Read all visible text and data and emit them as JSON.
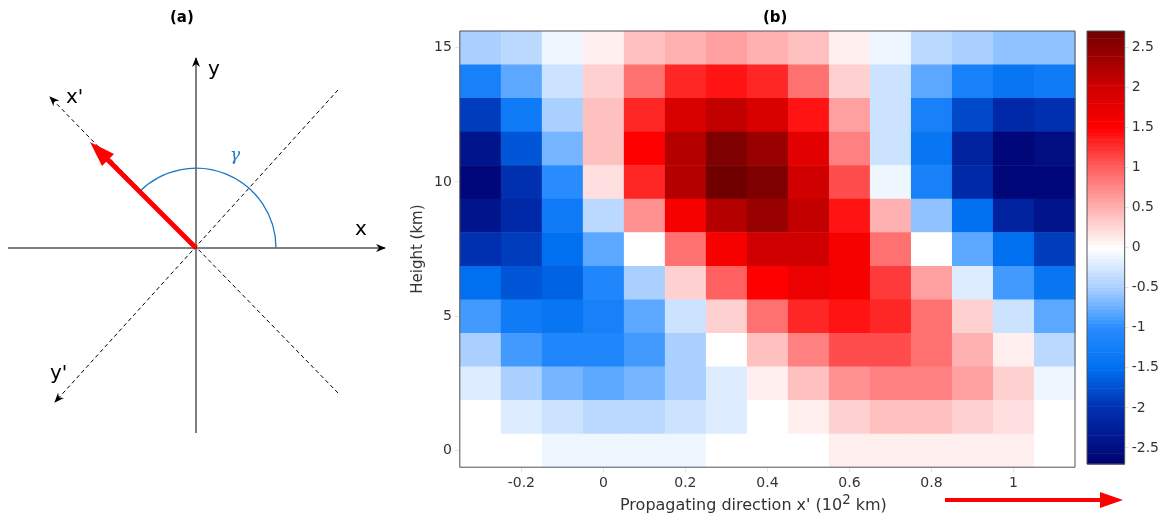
{
  "chart_data": [
    {
      "type": "other",
      "title": "(a)",
      "annotations": [
        "x",
        "y",
        "x'",
        "y'",
        "γ"
      ]
    },
    {
      "type": "heatmap",
      "title": "(b)",
      "xlabel": "Propagating direction x' (10$^{2}$ km)",
      "ylabel": "Height (km)",
      "categories": [
        null,
        "-0.2",
        null,
        "0",
        null,
        "0.2",
        null,
        "0.4",
        null,
        "0.6",
        null,
        "0.8",
        null,
        "1",
        null
      ],
      "y_categories": [
        "15",
        null,
        null,
        null,
        "10",
        null,
        null,
        null,
        "5",
        null,
        null,
        null,
        "0"
      ],
      "cells": [
        [
          -0.5,
          -0.4,
          -0.1,
          0.1,
          0.4,
          0.5,
          0.6,
          0.5,
          0.4,
          0.1,
          -0.1,
          -0.4,
          -0.5,
          -0.6,
          -0.6
        ],
        [
          -1.2,
          -0.8,
          -0.3,
          0.3,
          0.9,
          1.3,
          1.4,
          1.3,
          0.9,
          0.3,
          -0.3,
          -0.8,
          -1.2,
          -1.4,
          -1.3
        ],
        [
          -1.9,
          -1.3,
          -0.5,
          0.4,
          1.3,
          1.9,
          2.1,
          1.9,
          1.4,
          0.6,
          -0.3,
          -1.2,
          -1.8,
          -2.1,
          -2.0
        ],
        [
          -2.4,
          -1.7,
          -0.7,
          0.4,
          1.5,
          2.2,
          2.6,
          2.4,
          1.8,
          0.8,
          -0.3,
          -1.4,
          -2.2,
          -2.6,
          -2.5
        ],
        [
          -2.6,
          -2.0,
          -1.0,
          0.2,
          1.3,
          2.2,
          2.7,
          2.6,
          2.0,
          1.1,
          -0.1,
          -1.2,
          -2.1,
          -2.6,
          -2.6
        ],
        [
          -2.4,
          -2.1,
          -1.3,
          -0.4,
          0.7,
          1.6,
          2.2,
          2.4,
          2.1,
          1.4,
          0.5,
          -0.6,
          -1.5,
          -2.2,
          -2.4
        ],
        [
          -2.0,
          -1.9,
          -1.5,
          -0.8,
          0,
          0.9,
          1.6,
          2.0,
          2.0,
          1.6,
          0.9,
          0,
          -0.8,
          -1.5,
          -1.9
        ],
        [
          -1.5,
          -1.7,
          -1.6,
          -1.1,
          -0.5,
          0.3,
          1.0,
          1.5,
          1.7,
          1.6,
          1.2,
          0.6,
          -0.2,
          -0.9,
          -1.4
        ],
        [
          -0.9,
          -1.3,
          -1.4,
          -1.2,
          -0.8,
          -0.3,
          0.3,
          0.9,
          1.3,
          1.4,
          1.3,
          0.9,
          0.3,
          -0.3,
          -0.8
        ],
        [
          -0.5,
          -0.9,
          -1.1,
          -1.1,
          -0.9,
          -0.5,
          0,
          0.4,
          0.8,
          1.1,
          1.1,
          0.9,
          0.5,
          0.1,
          -0.4
        ],
        [
          -0.2,
          -0.5,
          -0.7,
          -0.8,
          -0.7,
          -0.5,
          -0.2,
          0.1,
          0.4,
          0.7,
          0.8,
          0.8,
          0.6,
          0.3,
          -0.1
        ],
        [
          0,
          -0.2,
          -0.3,
          -0.4,
          -0.4,
          -0.3,
          -0.2,
          0,
          0.1,
          0.3,
          0.4,
          0.4,
          0.3,
          0.2,
          0
        ],
        [
          0,
          0,
          -0.1,
          -0.1,
          -0.1,
          -0.1,
          0,
          0,
          0,
          0.1,
          0.1,
          0.1,
          0.1,
          0.1,
          0
        ]
      ],
      "clim": [
        -2.7,
        2.7
      ],
      "cticks": [
        -2.5,
        -2,
        -1.5,
        -1,
        -0.5,
        0,
        0.5,
        1,
        1.5,
        2,
        2.5
      ]
    }
  ]
}
